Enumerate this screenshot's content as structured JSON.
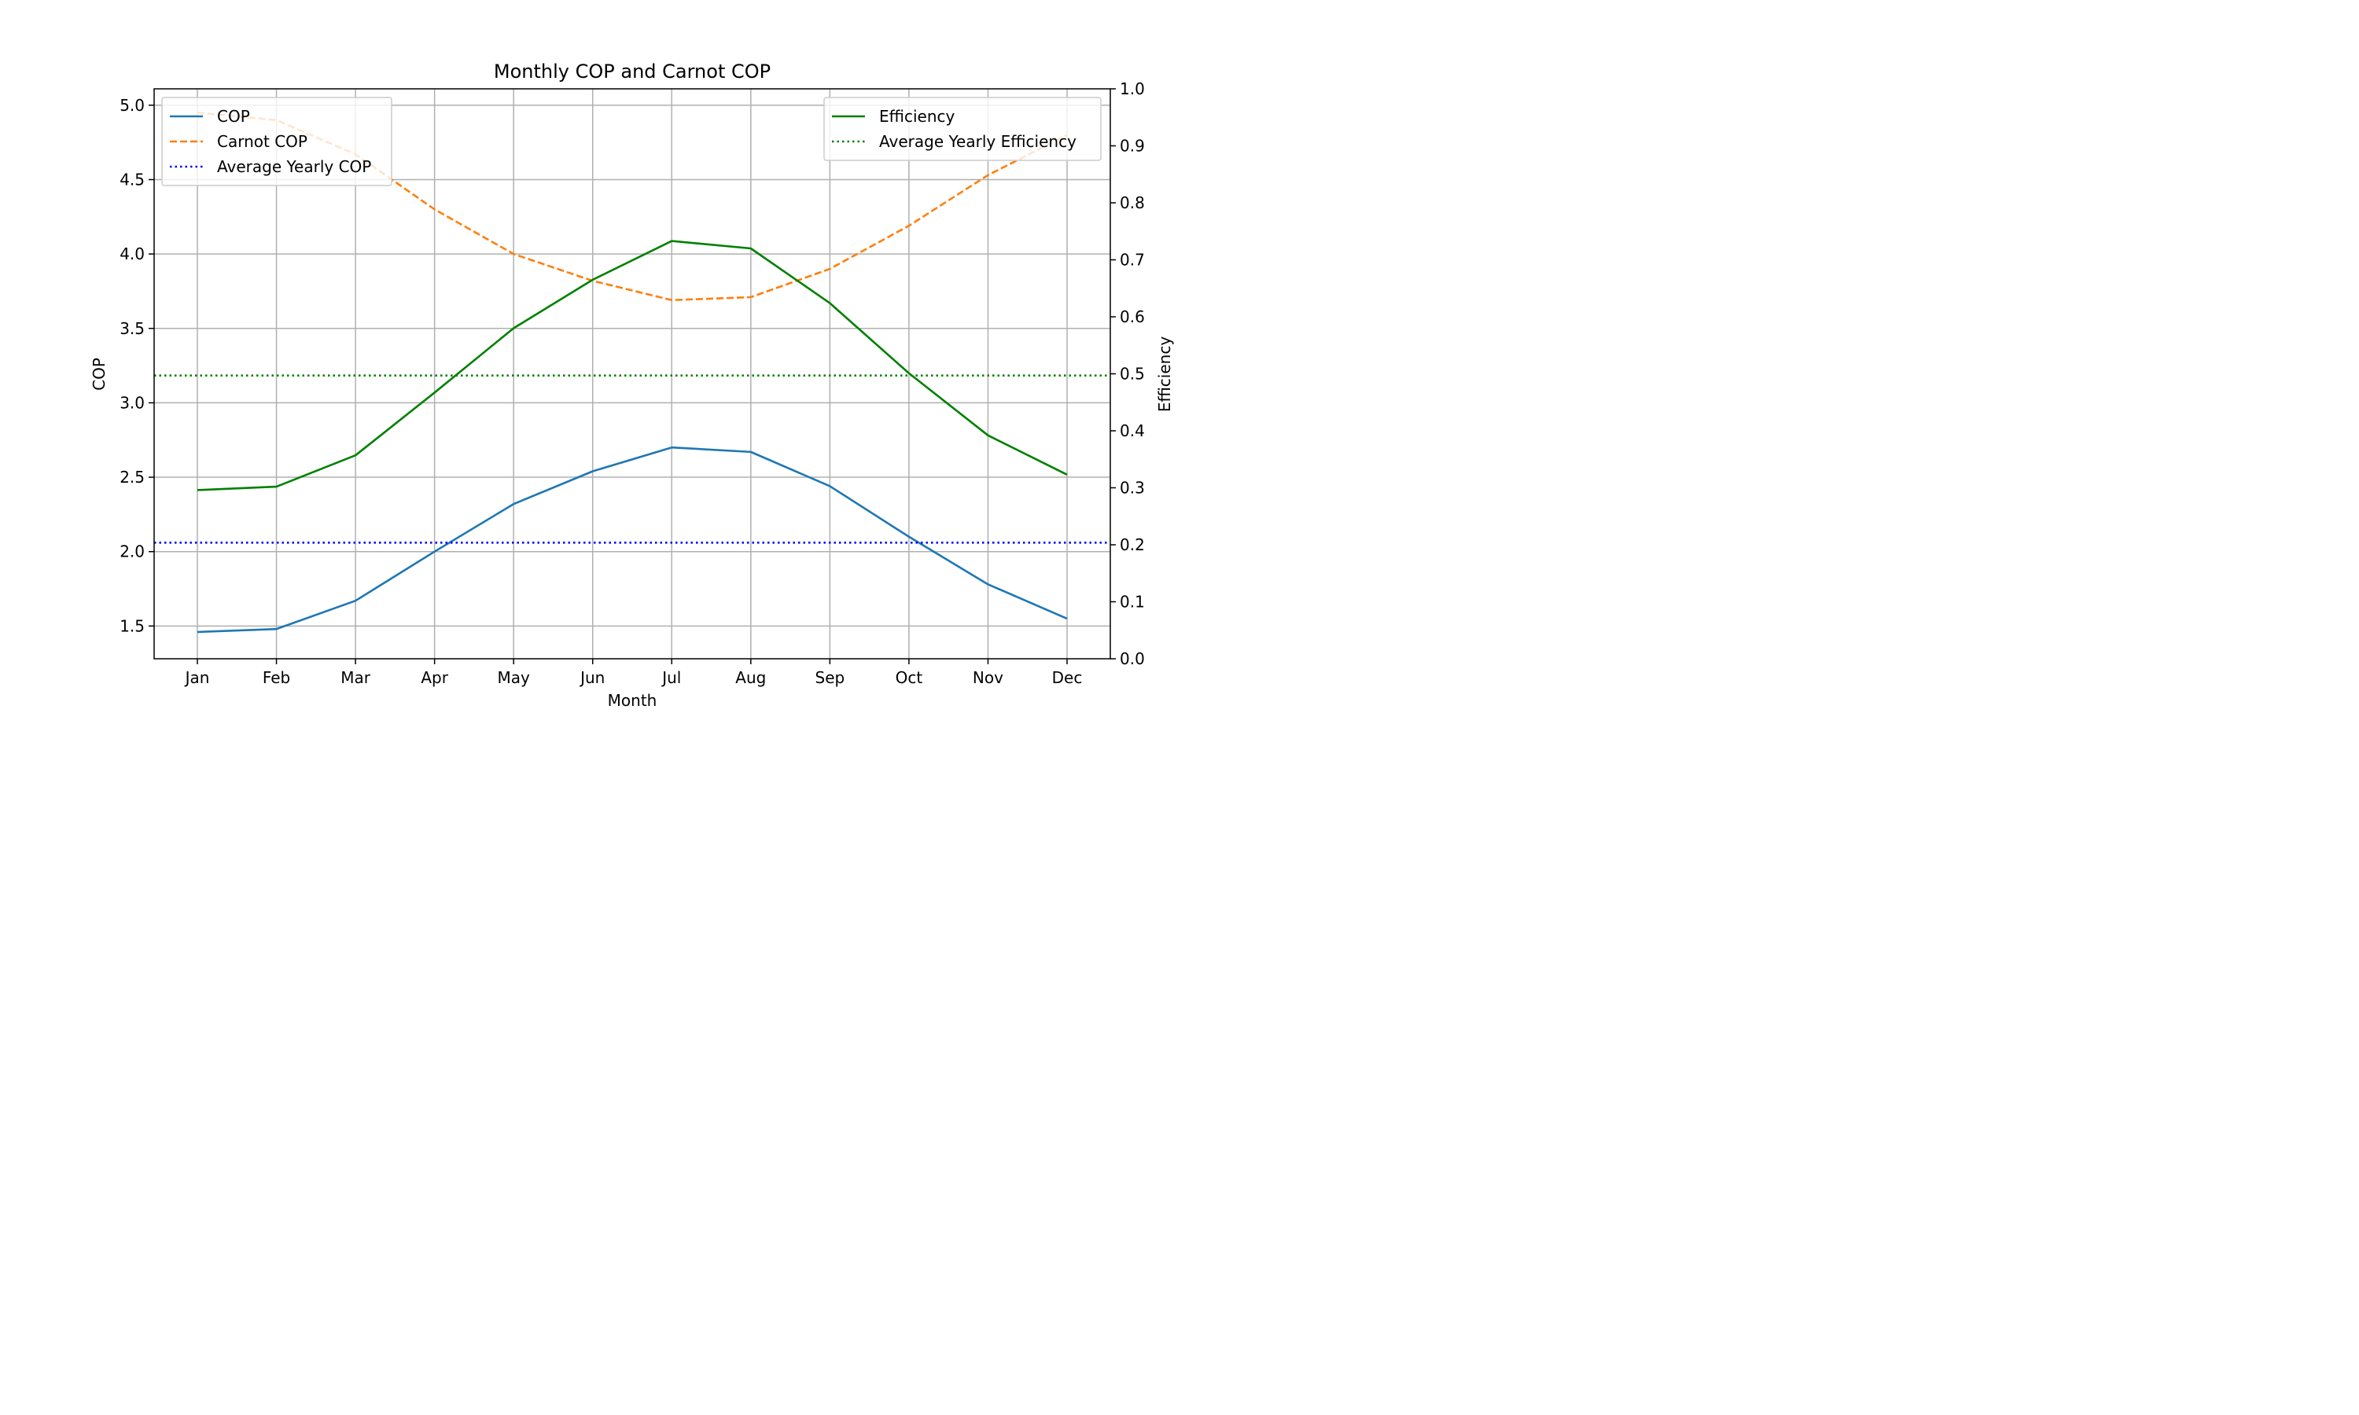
{
  "chart_data": {
    "type": "line",
    "title": "Monthly COP and Carnot COP",
    "xlabel": "Month",
    "ylabel": "COP",
    "y2label": "Efficiency",
    "categories": [
      "Jan",
      "Feb",
      "Mar",
      "Apr",
      "May",
      "Jun",
      "Jul",
      "Aug",
      "Sep",
      "Oct",
      "Nov",
      "Dec"
    ],
    "ylim": [
      1.28,
      5.11
    ],
    "y2lim": [
      0.0,
      1.0
    ],
    "yticks": [
      1.5,
      2.0,
      2.5,
      3.0,
      3.5,
      4.0,
      4.5,
      5.0
    ],
    "y2ticks": [
      0.0,
      0.1,
      0.2,
      0.3,
      0.4,
      0.5,
      0.6,
      0.7,
      0.8,
      0.9,
      1.0
    ],
    "grid": true,
    "series": [
      {
        "name": "COP",
        "axis": "left",
        "color": "#1f77b4",
        "style": "solid",
        "values": [
          1.46,
          1.48,
          1.67,
          2.0,
          2.32,
          2.54,
          2.7,
          2.67,
          2.44,
          2.1,
          1.78,
          1.55
        ]
      },
      {
        "name": "Carnot COP",
        "axis": "left",
        "color": "#ff7f0e",
        "style": "dashed",
        "values": [
          4.95,
          4.9,
          4.67,
          4.3,
          4.0,
          3.82,
          3.69,
          3.71,
          3.9,
          4.19,
          4.53,
          4.8
        ]
      },
      {
        "name": "Average Yearly COP",
        "axis": "left",
        "color": "#0000ff",
        "style": "dotted",
        "values": [
          2.06,
          2.06,
          2.06,
          2.06,
          2.06,
          2.06,
          2.06,
          2.06,
          2.06,
          2.06,
          2.06,
          2.06
        ]
      },
      {
        "name": "Efficiency",
        "axis": "right",
        "color": "#008000",
        "style": "solid",
        "values": [
          0.296,
          0.302,
          0.357,
          0.467,
          0.58,
          0.665,
          0.733,
          0.72,
          0.624,
          0.501,
          0.392,
          0.323
        ]
      },
      {
        "name": "Average Yearly Efficiency",
        "axis": "right",
        "color": "#008000",
        "style": "dotted",
        "values": [
          0.497,
          0.497,
          0.497,
          0.497,
          0.497,
          0.497,
          0.497,
          0.497,
          0.497,
          0.497,
          0.497,
          0.497
        ]
      }
    ],
    "legends": [
      {
        "placement": "top-left",
        "entries": [
          "COP",
          "Carnot COP",
          "Average Yearly COP"
        ]
      },
      {
        "placement": "top-right",
        "entries": [
          "Efficiency",
          "Average Yearly Efficiency"
        ]
      }
    ]
  }
}
